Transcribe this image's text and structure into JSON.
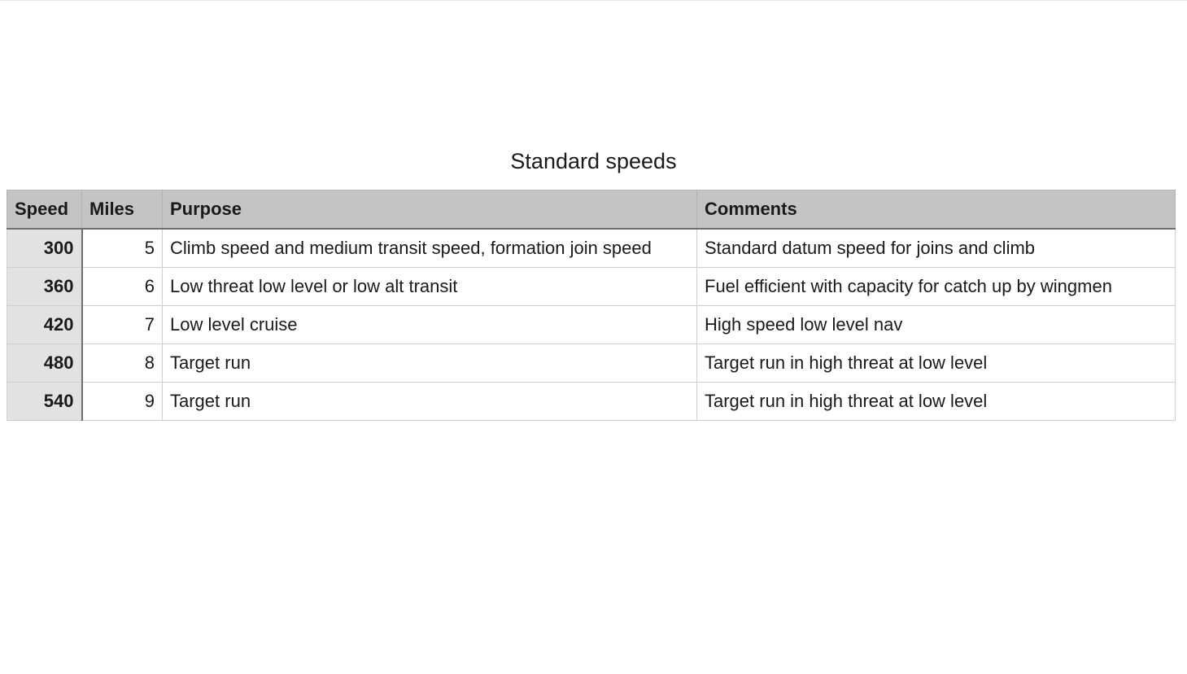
{
  "title": "Standard speeds",
  "columns": [
    "Speed",
    "Miles",
    "Purpose",
    "Comments"
  ],
  "rows": [
    {
      "speed": "300",
      "miles": "5",
      "purpose": "Climb speed and medium transit speed, formation join speed",
      "comments": "Standard datum speed for joins and climb"
    },
    {
      "speed": "360",
      "miles": "6",
      "purpose": "Low threat low level or low alt transit",
      "comments": "Fuel efficient with capacity for catch up by wingmen"
    },
    {
      "speed": "420",
      "miles": "7",
      "purpose": "Low level cruise",
      "comments": "High speed low level nav"
    },
    {
      "speed": "480",
      "miles": "8",
      "purpose": "Target run",
      "comments": "Target run in high threat at low level"
    },
    {
      "speed": "540",
      "miles": "9",
      "purpose": "Target run",
      "comments": "Target run in high threat at low level"
    }
  ],
  "colors": {
    "header_bg": "#c4c4c4",
    "row_header_bg": "#e2e2e2"
  }
}
